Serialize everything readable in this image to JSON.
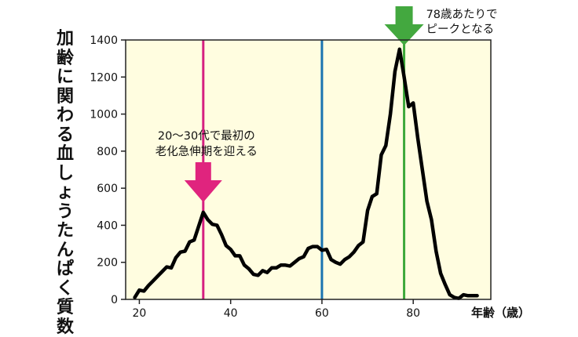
{
  "chart_data": {
    "type": "line",
    "ylabel": "加齢に関わる血しょうたんぱく質数",
    "xlabel": "年齢（歳）",
    "xlim": [
      17,
      97
    ],
    "ylim": [
      0,
      1400
    ],
    "xticks": [
      "20",
      "40",
      "60",
      "80"
    ],
    "yticks": [
      "0",
      "200",
      "400",
      "600",
      "800",
      "1000",
      "1200",
      "1400"
    ],
    "grid": false,
    "x": [
      19,
      20,
      21,
      22,
      23,
      24,
      25,
      26,
      27,
      28,
      29,
      30,
      31,
      32,
      33,
      34,
      35,
      36,
      37,
      38,
      39,
      40,
      41,
      42,
      43,
      44,
      45,
      46,
      47,
      48,
      49,
      50,
      51,
      52,
      53,
      54,
      55,
      56,
      57,
      58,
      59,
      60,
      61,
      62,
      63,
      64,
      65,
      66,
      67,
      68,
      69,
      70,
      71,
      72,
      73,
      74,
      75,
      76,
      77,
      78,
      79,
      80,
      81,
      82,
      83,
      84,
      85,
      86,
      87,
      88,
      89,
      90,
      91,
      92,
      93,
      94
    ],
    "values": [
      10,
      50,
      45,
      75,
      100,
      125,
      150,
      175,
      170,
      225,
      255,
      260,
      310,
      320,
      395,
      470,
      430,
      405,
      400,
      350,
      290,
      270,
      235,
      235,
      185,
      165,
      135,
      130,
      155,
      145,
      170,
      170,
      185,
      185,
      180,
      200,
      220,
      230,
      275,
      285,
      285,
      265,
      270,
      215,
      200,
      190,
      215,
      230,
      255,
      290,
      310,
      480,
      555,
      570,
      780,
      830,
      1000,
      1230,
      1350,
      1200,
      1040,
      1060,
      870,
      700,
      530,
      430,
      260,
      140,
      80,
      25,
      10,
      5,
      25,
      20,
      20,
      20
    ],
    "series_color": "#000000",
    "background": "#fffde0",
    "vlines": [
      {
        "x": 34,
        "color": "#d61f80"
      },
      {
        "x": 60,
        "color": "#1a73b0"
      },
      {
        "x": 78,
        "color": "#3da83a"
      }
    ],
    "annotations": [
      {
        "line1": "20～30代で最初の",
        "line2": "老化急伸期を迎える",
        "x": 34,
        "arrow_color": "#e0247e"
      },
      {
        "line1": "78歳あたりで",
        "line2": "ピークとなる",
        "x": 78,
        "arrow_color": "#43a83f"
      }
    ]
  }
}
